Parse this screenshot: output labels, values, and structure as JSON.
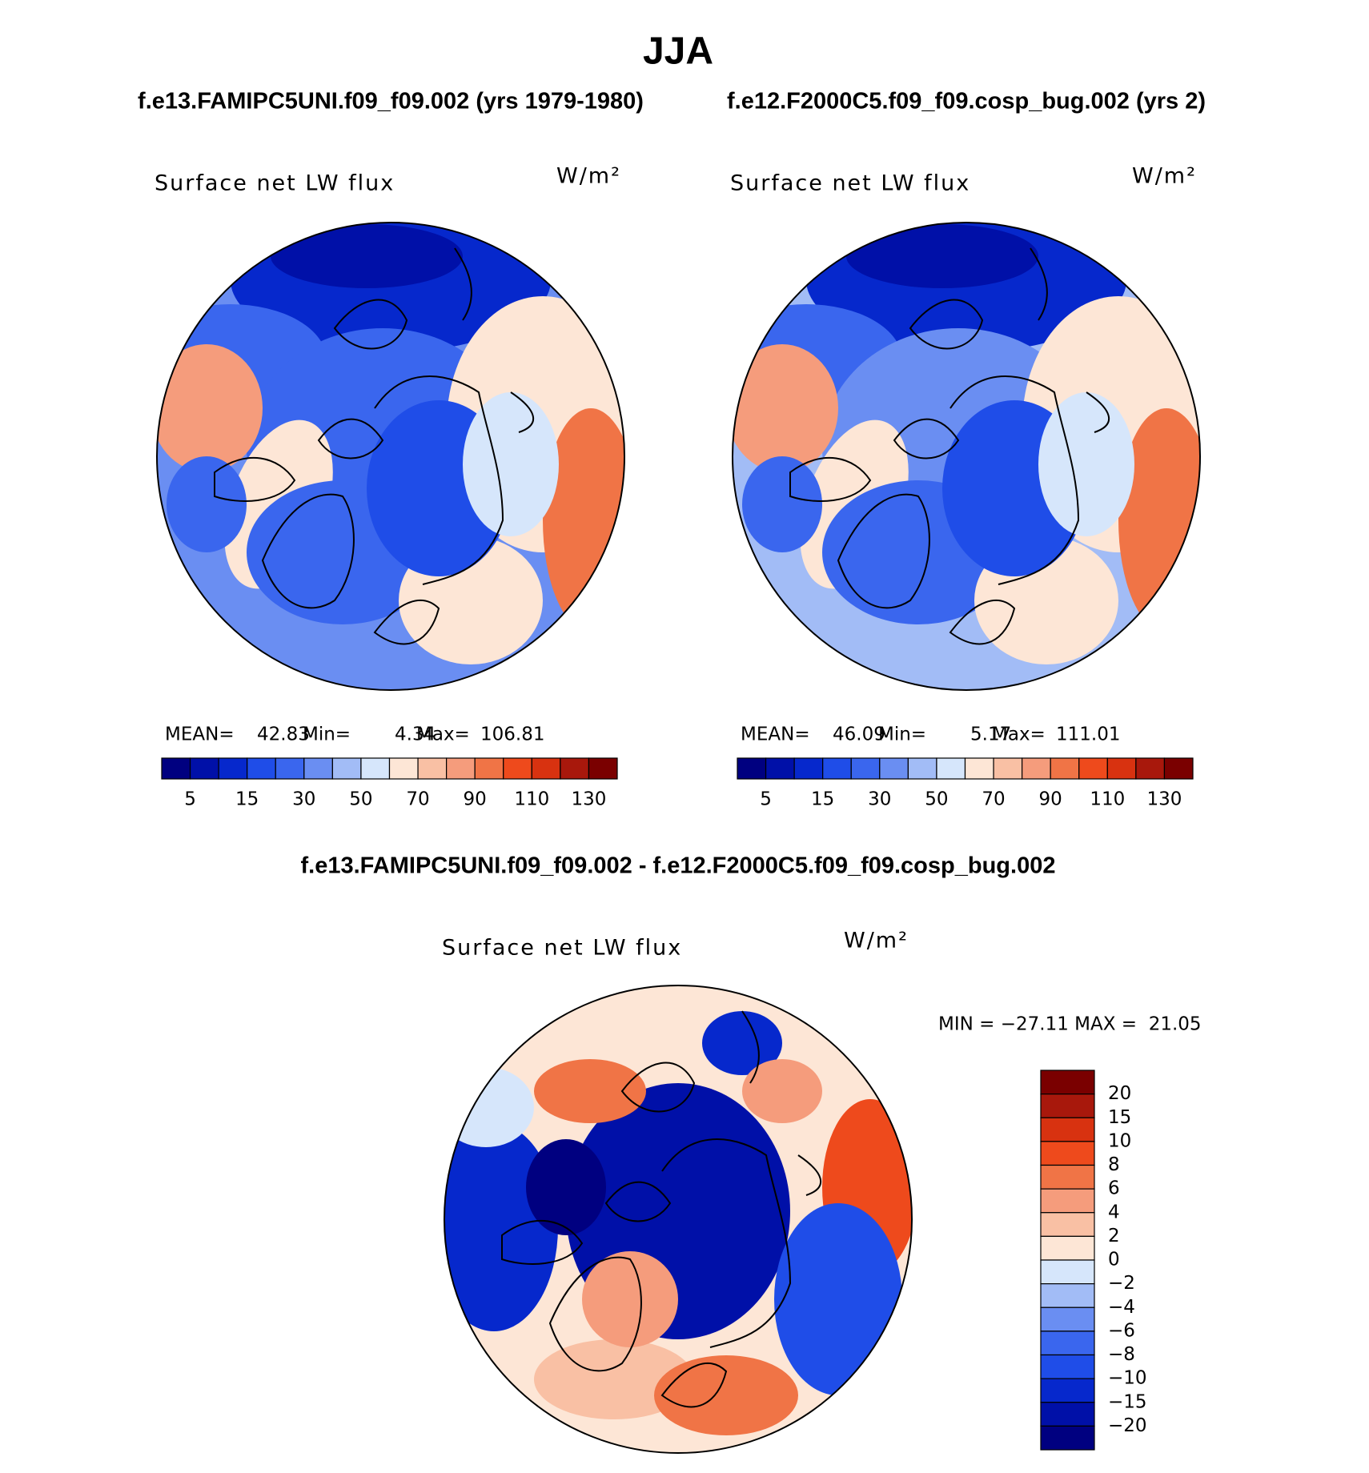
{
  "title": "JJA",
  "panels": [
    {
      "subtitle": "f.e13.FAMIPC5UNI.f09_f09.002 (yrs 1979-1980)",
      "label": "Surface net LW flux",
      "units": "W/m²",
      "stats": [
        [
          "MEAN=",
          "42.83"
        ],
        [
          "Min=",
          "4.34"
        ],
        [
          "Max=",
          "106.81"
        ]
      ]
    },
    {
      "subtitle": "f.e12.F2000C5.f09_f09.cosp_bug.002 (yrs 2)",
      "label": "Surface net LW flux",
      "units": "W/m²",
      "stats": [
        [
          "MEAN=",
          "46.09"
        ],
        [
          "Min=",
          "5.17"
        ],
        [
          "Max=",
          "111.01"
        ]
      ]
    }
  ],
  "colorbar": {
    "colors": [
      "#000080",
      "#0010a8",
      "#0628cc",
      "#1f4de8",
      "#3a66ee",
      "#6a8ef2",
      "#a2bcf6",
      "#d6e6fb",
      "#fde6d6",
      "#f9c0a4",
      "#f59c7c",
      "#f07446",
      "#ee4a1c",
      "#d83210",
      "#a8180c",
      "#7a0000"
    ],
    "labels": [
      "5",
      "15",
      "30",
      "50",
      "70",
      "90",
      "110",
      "130"
    ]
  },
  "difference": {
    "title": "f.e13.FAMIPC5UNI.f09_f09.002 - f.e12.F2000C5.f09_f09.cosp_bug.002",
    "label": "Surface net LW flux",
    "units": "W/m²",
    "minmax": "MIN = −27.11 MAX =  21.05",
    "colorbar": {
      "colors": [
        "#7a0000",
        "#a8180c",
        "#d83210",
        "#ee4a1c",
        "#f07446",
        "#f59c7c",
        "#f9c0a4",
        "#fde6d6",
        "#d6e6fb",
        "#a2bcf6",
        "#6a8ef2",
        "#3a66ee",
        "#1f4de8",
        "#0628cc",
        "#0010a8",
        "#000080"
      ],
      "labels": [
        "20",
        "15",
        "10",
        "8",
        "6",
        "4",
        "2",
        "0",
        "−2",
        "−4",
        "−6",
        "−8",
        "−10",
        "−15",
        "−20"
      ]
    }
  }
}
